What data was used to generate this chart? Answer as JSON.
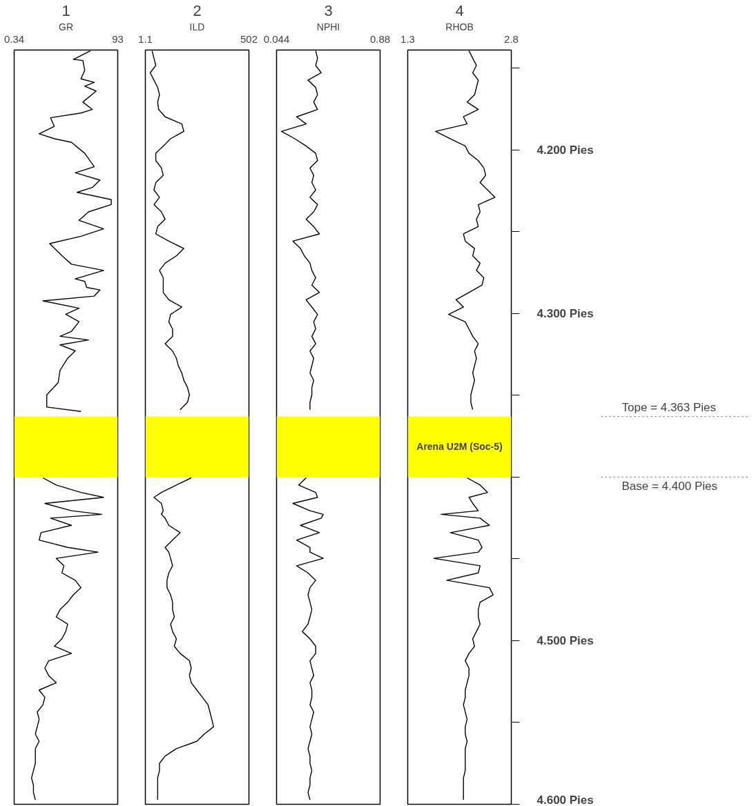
{
  "chart_data": [
    {
      "type": "line",
      "title": "1",
      "xlabel": "GR",
      "xlim": [
        0.34,
        93
      ],
      "xticks": [
        0.34,
        93
      ],
      "ylim": [
        4.6,
        4.139
      ],
      "tick_labels": "x",
      "bands": [
        {
          "axis": "y",
          "from": 4.363,
          "to": 4.4,
          "label": null,
          "color": "#ffff00"
        }
      ],
      "series": [
        {
          "color": "#000000",
          "x": [
            68.6,
            53.3,
            61.8,
            63.5,
            60.1,
            72.0,
            63.5,
            73.7,
            61.8,
            70.2,
            60.1,
            32.9,
            36.3,
            22.7,
            36.3,
            51.6,
            63.5,
            72.0,
            55.0,
            77.1,
            70.2,
            56.7,
            87.2,
            87.2,
            66.9,
            58.4,
            80.4,
            60.1,
            32.1,
            43.1,
            51.6,
            80.4,
            55.0,
            63.5,
            65.2,
            77.1,
            72.0,
            26.1,
            58.4,
            46.5,
            58.4,
            51.6,
            41.4,
            66.9,
            41.4,
            55.0,
            48.2,
            41.4,
            39.7,
            29.5,
            29.5,
            60.1,
            null,
            26.1,
            38.0,
            60.1,
            80.4,
            27.8,
            51.6,
            78.7,
            32.9,
            51.6,
            24.4,
            22.7,
            48.2,
            75.3,
            38.0,
            44.8,
            43.1,
            55.0,
            60.1,
            53.3,
            48.2,
            41.4,
            38.0,
            48.2,
            46.5,
            43.1,
            36.3,
            51.6,
            31.2,
            27.8,
            31.2,
            38.0,
            22.7,
            27.8,
            26.1,
            21.0,
            22.7,
            21.0,
            19.3,
            22.7,
            19.3,
            19.3,
            19.3,
            17.6,
            15.9,
            17.6,
            17.6,
            19.3
          ],
          "values": [
            4.1395,
            4.1447,
            4.1454,
            4.1514,
            4.1566,
            4.1588,
            4.1611,
            4.1641,
            4.1708,
            4.1753,
            4.1775,
            4.1804,
            4.1857,
            4.1902,
            4.1932,
            4.1954,
            4.2021,
            4.2103,
            4.214,
            4.2185,
            4.223,
            4.226,
            4.2304,
            4.2334,
            4.2379,
            4.2431,
            4.2483,
            4.2528,
            4.2573,
            4.2647,
            4.2699,
            4.2737,
            4.2789,
            4.2804,
            4.2841,
            4.2856,
            4.2894,
            4.2923,
            4.2968,
            4.3005,
            4.305,
            4.311,
            4.314,
            4.3162,
            4.3192,
            4.3229,
            4.3274,
            4.3348,
            4.3423,
            4.3498,
            4.3572,
            4.3599,
            null,
            4.4005,
            4.4049,
            4.4094,
            4.4124,
            4.4161,
            4.4206,
            4.4228,
            4.4251,
            4.4295,
            4.434,
            4.4385,
            4.443,
            4.4459,
            4.4497,
            4.4542,
            4.4586,
            4.4631,
            4.4676,
            4.472,
            4.4765,
            4.481,
            4.4855,
            4.4899,
            4.4944,
            4.4989,
            4.5034,
            4.5078,
            4.5123,
            4.5168,
            4.5213,
            4.5257,
            4.5302,
            4.5347,
            4.5392,
            4.5436,
            4.5481,
            4.5526,
            4.5571,
            4.5615,
            4.566,
            4.5705,
            4.575,
            4.5794,
            4.5839,
            4.5884,
            4.5928,
            4.5973
          ]
        }
      ]
    },
    {
      "type": "line",
      "title": "2",
      "xlabel": "ILD",
      "log": "x",
      "xlim": [
        1.1,
        502
      ],
      "xticks": [
        1.1,
        502
      ],
      "ylim": [
        4.6,
        4.139
      ],
      "tick_labels": "x",
      "bands": [
        {
          "axis": "y",
          "from": 4.363,
          "to": 4.4,
          "label": null,
          "color": "#ffff00"
        }
      ],
      "series": [
        {
          "color": "#000000",
          "x": [
            1.64,
            1.83,
            2.04,
            1.47,
            1.83,
            2.28,
            2.54,
            2.28,
            2.41,
            3.54,
            9.5,
            10.7,
            4.9,
            3.17,
            2.04,
            2.04,
            2.84,
            3.17,
            2.04,
            1.83,
            2.54,
            1.83,
            2.84,
            3.54,
            2.28,
            2.04,
            4.4,
            10.7,
            6.9,
            3.54,
            2.54,
            3.17,
            3.17,
            3.17,
            4.4,
            9.5,
            4.9,
            4.4,
            5.5,
            5.5,
            3.54,
            5.5,
            6.9,
            7.7,
            9.5,
            10.7,
            13.3,
            14.9,
            13.3,
            8.6,
            null,
            16.6,
            6.9,
            2.84,
            1.83,
            2.84,
            3.17,
            2.84,
            3.54,
            4.4,
            8.6,
            5.5,
            3.54,
            4.4,
            4.9,
            5.5,
            4.4,
            3.96,
            3.96,
            4.9,
            5.5,
            5.5,
            6.1,
            4.9,
            5.5,
            6.9,
            6.1,
            8.6,
            14.9,
            16.6,
            14.9,
            16.6,
            23.1,
            32.2,
            44.8,
            50,
            56,
            62,
            35.9,
            23.1,
            6.9,
            3.54,
            2.54,
            2.54,
            2.28,
            2.28,
            2.28,
            2.28
          ],
          "values": [
            4.1395,
            4.144,
            4.1484,
            4.1529,
            4.1574,
            4.1619,
            4.1663,
            4.1708,
            4.1753,
            4.1798,
            4.1842,
            4.1887,
            4.1932,
            4.1977,
            4.2021,
            4.2066,
            4.2111,
            4.2156,
            4.22,
            4.2245,
            4.229,
            4.2335,
            4.2379,
            4.2424,
            4.2469,
            4.2514,
            4.2558,
            4.2603,
            4.2648,
            4.2693,
            4.2737,
            4.2782,
            4.2827,
            4.2872,
            4.2916,
            4.2961,
            4.3006,
            4.3051,
            4.3095,
            4.314,
            4.3185,
            4.323,
            4.3274,
            4.3319,
            4.3364,
            4.3409,
            4.3453,
            4.3498,
            4.3543,
            4.3588,
            null,
            4.4005,
            4.4049,
            4.4094,
            4.4124,
            4.4161,
            4.4206,
            4.4228,
            4.4251,
            4.4295,
            4.434,
            4.4385,
            4.443,
            4.4459,
            4.4497,
            4.4542,
            4.4586,
            4.4631,
            4.4676,
            4.472,
            4.4765,
            4.481,
            4.4855,
            4.4899,
            4.4944,
            4.4989,
            4.5034,
            4.5078,
            4.5123,
            4.5168,
            4.5213,
            4.5257,
            4.5302,
            4.5347,
            4.5392,
            4.5436,
            4.5481,
            4.5526,
            4.5571,
            4.5615,
            4.566,
            4.5705,
            4.575,
            4.5794,
            4.5839,
            4.5884,
            4.5928,
            4.5973
          ]
        }
      ]
    },
    {
      "type": "line",
      "title": "3",
      "xlabel": "NPHI",
      "xlim": [
        0.044,
        0.88
      ],
      "xticks": [
        0.044,
        0.88
      ],
      "ylim": [
        4.6,
        4.139
      ],
      "tick_labels": "x",
      "bands": [
        {
          "axis": "y",
          "from": 4.363,
          "to": 4.4,
          "label": null,
          "color": "#ffff00"
        }
      ],
      "series": [
        {
          "color": "#000000",
          "x": [
            0.36,
            0.375,
            0.36,
            0.405,
            0.298,
            0.36,
            0.375,
            0.344,
            0.375,
            0.206,
            0.283,
            0.084,
            0.191,
            0.283,
            0.36,
            0.375,
            0.314,
            0.344,
            0.329,
            0.36,
            0.314,
            0.375,
            0.344,
            0.283,
            0.344,
            0.39,
            0.176,
            0.237,
            0.268,
            0.314,
            0.329,
            0.36,
            0.329,
            0.39,
            0.283,
            0.329,
            0.375,
            0.344,
            0.36,
            0.329,
            0.36,
            0.314,
            0.344,
            0.329,
            0.314,
            0.344,
            0.329,
            0.329,
            0.314,
            0.314,
            null,
            0.283,
            0.222,
            0.36,
            0.375,
            0.176,
            0.314,
            0.421,
            0.405,
            0.237,
            0.39,
            0.206,
            0.314,
            0.314,
            0.421,
            0.206,
            0.298,
            0.36,
            0.314,
            0.298,
            0.314,
            0.329,
            0.314,
            0.298,
            0.252,
            0.314,
            0.36,
            0.36,
            0.314,
            0.329,
            0.344,
            0.314,
            0.329,
            0.329,
            0.314,
            0.344,
            0.329,
            0.314,
            0.329,
            0.314,
            0.298,
            0.314,
            0.314,
            0.329,
            0.314,
            0.314,
            0.298,
            0.314
          ],
          "values": [
            4.1395,
            4.144,
            4.1484,
            4.1529,
            4.1574,
            4.1619,
            4.1663,
            4.1708,
            4.1753,
            4.1798,
            4.1842,
            4.1887,
            4.1932,
            4.1977,
            4.2021,
            4.2066,
            4.2111,
            4.2156,
            4.22,
            4.2245,
            4.229,
            4.2335,
            4.2379,
            4.2424,
            4.2469,
            4.2514,
            4.2558,
            4.2603,
            4.2648,
            4.2693,
            4.2737,
            4.2782,
            4.2827,
            4.2872,
            4.2916,
            4.2961,
            4.3006,
            4.3051,
            4.3095,
            4.314,
            4.3185,
            4.323,
            4.3274,
            4.3319,
            4.3364,
            4.3409,
            4.3453,
            4.3498,
            4.3543,
            4.3588,
            null,
            4.4005,
            4.4049,
            4.4094,
            4.4124,
            4.4161,
            4.4206,
            4.4228,
            4.4251,
            4.4295,
            4.434,
            4.4385,
            4.443,
            4.4459,
            4.4497,
            4.4542,
            4.4586,
            4.4631,
            4.4676,
            4.472,
            4.4765,
            4.481,
            4.4855,
            4.4899,
            4.4944,
            4.4989,
            4.5034,
            4.5078,
            4.5123,
            4.5168,
            4.5213,
            4.5257,
            4.5302,
            4.5347,
            4.5392,
            4.5436,
            4.5481,
            4.5526,
            4.5571,
            4.5615,
            4.566,
            4.5705,
            4.575,
            4.5794,
            4.5839,
            4.5884,
            4.5928,
            4.5973
          ]
        }
      ]
    },
    {
      "type": "line",
      "title": "4",
      "xlabel": "RHOB",
      "xlim": [
        1.3,
        2.8
      ],
      "xticks": [
        1.3,
        2.8
      ],
      "ylim": [
        4.6,
        4.139
      ],
      "yticks": [
        {
          "value": 4.15,
          "label": null
        },
        {
          "value": 4.2,
          "label": "4.200 Pies"
        },
        {
          "value": 4.25,
          "label": null
        },
        {
          "value": 4.3,
          "label": "4.300 Pies"
        },
        {
          "value": 4.35,
          "label": null
        },
        {
          "value": 4.4,
          "label": null
        },
        {
          "value": 4.45,
          "label": null
        },
        {
          "value": 4.5,
          "label": "4.500 Pies"
        },
        {
          "value": 4.55,
          "label": null
        },
        {
          "value": 4.6,
          "label": "4.600 Pies"
        }
      ],
      "bands": [
        {
          "axis": "y",
          "from": 4.363,
          "to": 4.4,
          "label": "Arena U2M (Soc-5)",
          "color": "#ffff00"
        }
      ],
      "ref_lines": [
        {
          "axis": "y",
          "value": 4.363,
          "label": "Tope = 4.363 Pies",
          "line_style": "dotted",
          "color": "#808080"
        },
        {
          "axis": "y",
          "value": 4.4,
          "label": "Base = 4.400 Pies",
          "line_style": "dotted",
          "color": "#808080"
        }
      ],
      "series": [
        {
          "color": "#000000",
          "x": [
            2.187,
            2.241,
            2.295,
            2.241,
            2.322,
            2.295,
            2.268,
            2.16,
            2.322,
            2.107,
            2.16,
            1.703,
            1.918,
            2.133,
            2.187,
            2.322,
            2.402,
            2.429,
            2.348,
            2.456,
            2.564,
            2.322,
            2.348,
            2.295,
            2.322,
            2.107,
            2.133,
            2.268,
            2.241,
            2.348,
            2.295,
            2.402,
            2.375,
            2.187,
            1.999,
            2.107,
            1.892,
            2.133,
            2.187,
            2.241,
            2.322,
            2.268,
            2.295,
            2.268,
            2.241,
            2.268,
            2.241,
            2.214,
            2.214,
            2.241,
            null,
            2.16,
            2.348,
            2.456,
            2.187,
            2.241,
            2.322,
            1.784,
            2.348,
            2.483,
            1.918,
            2.322,
            2.375,
            2.322,
            1.677,
            2.348,
            2.322,
            1.865,
            2.483,
            2.537,
            2.348,
            2.322,
            2.322,
            2.348,
            2.295,
            2.241,
            2.268,
            2.187,
            2.133,
            2.187,
            2.187,
            2.16,
            2.133,
            2.133,
            2.107,
            2.133,
            2.16,
            2.133,
            2.133,
            2.16,
            2.133,
            2.133,
            2.133,
            2.133,
            2.107,
            2.107,
            2.107,
            2.107
          ],
          "values": [
            4.1395,
            4.144,
            4.1484,
            4.1529,
            4.1574,
            4.1619,
            4.1663,
            4.1708,
            4.1753,
            4.1798,
            4.1842,
            4.1887,
            4.1932,
            4.1977,
            4.2021,
            4.2066,
            4.2111,
            4.2156,
            4.22,
            4.2245,
            4.229,
            4.2335,
            4.2379,
            4.2424,
            4.2469,
            4.2514,
            4.2558,
            4.2603,
            4.2648,
            4.2693,
            4.2737,
            4.2782,
            4.2827,
            4.2872,
            4.2916,
            4.2961,
            4.3006,
            4.3051,
            4.3095,
            4.314,
            4.3185,
            4.323,
            4.3274,
            4.3319,
            4.3364,
            4.3409,
            4.3453,
            4.3498,
            4.3543,
            4.3588,
            null,
            4.4005,
            4.4049,
            4.4094,
            4.4124,
            4.4161,
            4.4206,
            4.4228,
            4.4251,
            4.4295,
            4.434,
            4.4385,
            4.443,
            4.4459,
            4.4497,
            4.4542,
            4.4586,
            4.4631,
            4.4676,
            4.472,
            4.4765,
            4.481,
            4.4855,
            4.4899,
            4.4944,
            4.4989,
            4.5034,
            4.5078,
            4.5123,
            4.5168,
            4.5213,
            4.5257,
            4.5302,
            4.5347,
            4.5392,
            4.5436,
            4.5481,
            4.5526,
            4.5571,
            4.5615,
            4.566,
            4.5705,
            4.575,
            4.5794,
            4.5839,
            4.5884,
            4.5928,
            4.5973
          ]
        }
      ]
    }
  ]
}
